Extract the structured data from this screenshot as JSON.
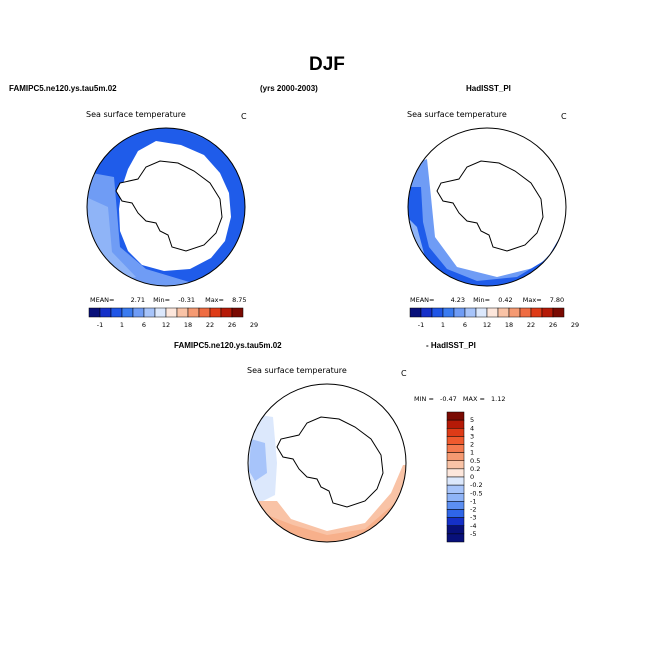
{
  "figure": {
    "title": "DJF",
    "left_header": "FAMIPC5.ne120.ys.tau5m.02",
    "center_header": "(yrs 2000-2003)",
    "right_header": "HadISST_PI",
    "bottom_header_left": "FAMIPC5.ne120.ys.tau5m.02",
    "bottom_header_right": "- HadISST_PI"
  },
  "colors": {
    "land": "#ffffff",
    "outline": "#000000"
  },
  "chart_data": [
    {
      "type": "heatmap",
      "projection": "south-polar-stereographic",
      "title": "Sea surface temperature",
      "units": "C",
      "stats": {
        "mean_label": "MEAN=",
        "mean": "2.71",
        "min_label": "Min=",
        "min": "-0.31",
        "max_label": "Max=",
        "max": "8.75"
      },
      "colorbar": {
        "orientation": "horizontal",
        "tick_labels": [
          "-1",
          "1",
          "6",
          "12",
          "18",
          "22",
          "26",
          "29"
        ],
        "colors": [
          "#08107a",
          "#1530c8",
          "#1f55e6",
          "#3a7bf0",
          "#6f9cf5",
          "#a7c4fa",
          "#dce8fc",
          "#fde7dc",
          "#f9c3a6",
          "#f59a72",
          "#ef6c42",
          "#de3b17",
          "#b51a07",
          "#7a0a02"
        ]
      },
      "field": {
        "ring_colors": [
          "#1f5cea",
          "#2b6af0"
        ],
        "warm_sector_colors": [
          "#6f9cf5",
          "#8fb4f7"
        ],
        "ice_edge": "irregular"
      }
    },
    {
      "type": "heatmap",
      "projection": "south-polar-stereographic",
      "title": "Sea surface temperature",
      "units": "C",
      "stats": {
        "mean_label": "MEAN=",
        "mean": "4.23",
        "min_label": "Min=",
        "min": "0.42",
        "max_label": "Max=",
        "max": "7.80"
      },
      "colorbar": {
        "orientation": "horizontal",
        "tick_labels": [
          "-1",
          "1",
          "6",
          "12",
          "18",
          "22",
          "26",
          "29"
        ],
        "colors": [
          "#08107a",
          "#1530c8",
          "#1f55e6",
          "#3a7bf0",
          "#6f9cf5",
          "#a7c4fa",
          "#dce8fc",
          "#fde7dc",
          "#f9c3a6",
          "#f59a72",
          "#ef6c42",
          "#de3b17",
          "#b51a07",
          "#7a0a02"
        ]
      },
      "field": {
        "ring_colors": [
          "#1f5cea",
          "#6f9cf5"
        ],
        "coverage": "partial"
      }
    },
    {
      "type": "heatmap",
      "projection": "south-polar-stereographic",
      "title": "Sea surface temperature",
      "units": "C",
      "stats": {
        "min_label": "MIN =",
        "min": "-0.47",
        "max_label": "MAX =",
        "max": "1.12"
      },
      "colorbar": {
        "orientation": "vertical",
        "tick_labels": [
          "5",
          "4",
          "3",
          "2",
          "1",
          "0.5",
          "0.2",
          "0",
          "-0.2",
          "-0.5",
          "-1",
          "-2",
          "-3",
          "-4",
          "-5"
        ],
        "colors": [
          "#7a0a02",
          "#b51a07",
          "#de3b17",
          "#ef5a2e",
          "#f47a4f",
          "#f59a72",
          "#f9c3a6",
          "#fde7dc",
          "#dce8fc",
          "#a7c4fa",
          "#8fb4f7",
          "#5c8ff2",
          "#2f66e8",
          "#1530c8",
          "#08107a"
        ]
      },
      "field": {
        "diff_colors": [
          "#f7b08b",
          "#f9c3a6",
          "#dce8fc",
          "#a7c4fa"
        ]
      }
    }
  ]
}
